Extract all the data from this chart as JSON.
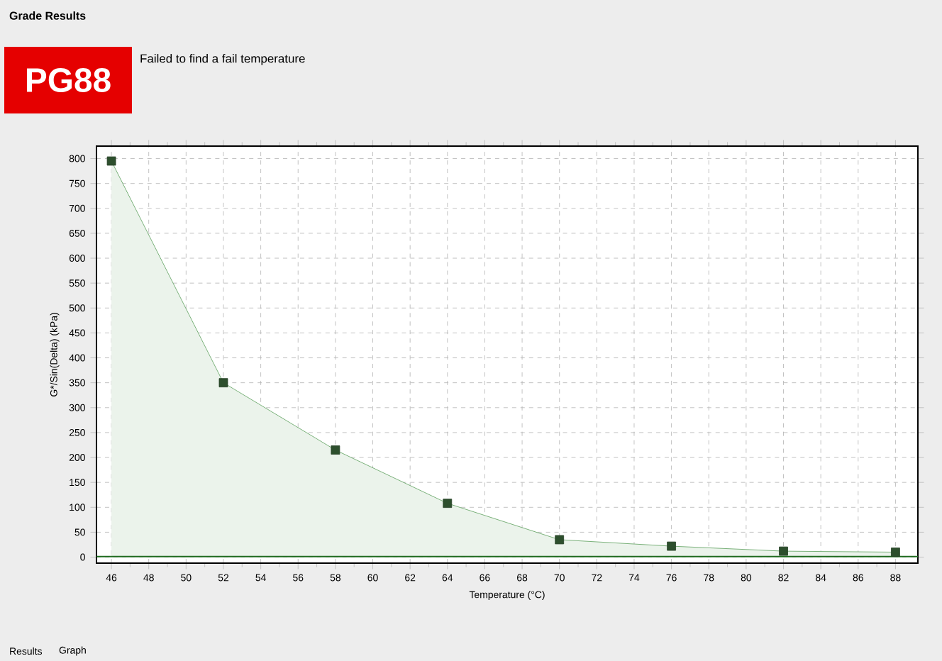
{
  "chart_data": {
    "type": "area",
    "title": "PG88",
    "subtitle": "Failed to find a fail temperature",
    "xlabel": "Temperature (°C)",
    "ylabel": "G*/Sin(Delta) (kPa)",
    "annotations": [
      "Grade Results",
      "Results",
      "Graph"
    ],
    "x": [
      46,
      52,
      58,
      64,
      70,
      76,
      82,
      88
    ],
    "series": [
      {
        "color": "#5a9e5a",
        "values": [
          795,
          350,
          215,
          108,
          35,
          22,
          12,
          10
        ]
      }
    ],
    "xlim": [
      45.2,
      89.2
    ],
    "ylim": [
      -12,
      825
    ],
    "xticks": [
      46,
      48,
      50,
      52,
      54,
      56,
      58,
      60,
      62,
      64,
      66,
      68,
      70,
      72,
      74,
      76,
      78,
      80,
      82,
      84,
      86,
      88
    ],
    "yticks": [
      0,
      50,
      100,
      150,
      200,
      250,
      300,
      350,
      400,
      450,
      500,
      550,
      600,
      650,
      700,
      750,
      800
    ],
    "ref_lines": [
      {
        "axis": "y",
        "value": 1,
        "color": "#1f6b1f"
      }
    ],
    "grid": true,
    "marker": "square",
    "line_style": "solid"
  }
}
